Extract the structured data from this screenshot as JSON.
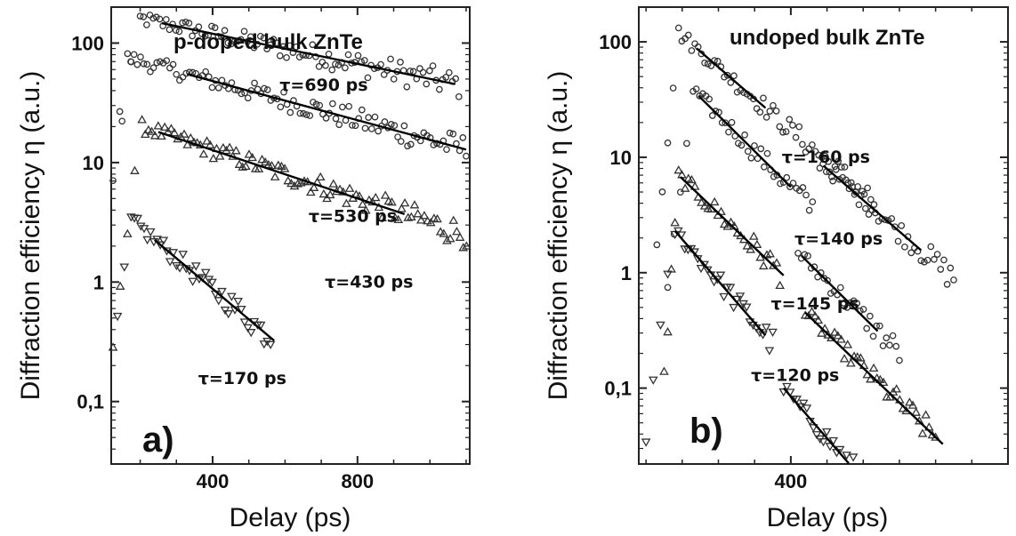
{
  "chart_data": [
    {
      "type": "scatter",
      "panel_label": "a)",
      "title": "p-doped bulk ZnTe",
      "xlabel": "Delay (ps)",
      "ylabel": "Diffraction efficiency η (a.u.)",
      "xlim": [
        120,
        1110
      ],
      "ylim": [
        0.03,
        200
      ],
      "yscale": "log",
      "x_ticks": [
        400,
        800
      ],
      "y_ticks": [
        {
          "value": 100,
          "label": "100"
        },
        {
          "value": 10,
          "label": "10"
        },
        {
          "value": 1,
          "label": "1"
        },
        {
          "value": 0.1,
          "label": "0,1"
        }
      ],
      "grid": false,
      "series": [
        {
          "marker": "open-circle",
          "amplitude": 160,
          "tau": 690,
          "t0": 200,
          "rise_start": 100,
          "end": 1080,
          "fit": {
            "x": [
              260,
              1070
            ],
            "label": "τ=690 ps",
            "label_x": 585,
            "label_y": 40
          }
        },
        {
          "marker": "open-circle",
          "amplitude": 75,
          "tau": 530,
          "t0": 165,
          "rise_start": 80,
          "end": 1100,
          "fit": {
            "x": [
              330,
              1100
            ],
            "label": "τ=530 ps",
            "label_x": 665,
            "label_y": 3.2
          }
        },
        {
          "marker": "open-triangle-up",
          "amplitude": 20,
          "tau": 430,
          "t0": 205,
          "rise_start": 125,
          "end": 1110,
          "fit": {
            "x": [
              250,
              930
            ],
            "label": "τ=430 ps",
            "label_x": 710,
            "label_y": 0.9
          }
        },
        {
          "marker": "open-triangle-down",
          "amplitude": 3.3,
          "tau": 170,
          "t0": 175,
          "rise_start": 100,
          "end": 560,
          "fit": {
            "x": [
              240,
              570
            ],
            "label": "τ=170 ps",
            "label_x": 360,
            "label_y": 0.14
          }
        }
      ]
    },
    {
      "type": "scatter",
      "panel_label": "b)",
      "title": "undoped bulk ZnTe",
      "xlabel": "Delay (ps)",
      "ylabel": "Diffraction efficiency η (a.u.)",
      "xlim": [
        -20,
        1000
      ],
      "ylim": [
        0.022,
        200
      ],
      "yscale": "log",
      "x_ticks": [
        400
      ],
      "y_ticks": [
        {
          "value": 100,
          "label": "100"
        },
        {
          "value": 10,
          "label": "10"
        },
        {
          "value": 1,
          "label": "1"
        },
        {
          "value": 0.1,
          "label": "0,1"
        }
      ],
      "grid": false,
      "series": [
        {
          "marker": "open-circle",
          "amplitude": 120,
          "tau": 160,
          "t0": 90,
          "rise_start": 30,
          "end": 630,
          "fit": {
            "x": [
              140,
              330
            ],
            "label": "τ=160 ps",
            "label_x": 375,
            "label_y": 9
          }
        },
        {
          "marker": "open-circle",
          "amplitude": 38,
          "tau": 140,
          "t0": 130,
          "rise_start": 60,
          "end": 460,
          "fit": {
            "x": [
              145,
              400
            ],
            "label": "τ=140 ps",
            "label_x": 410,
            "label_y": 1.75
          }
        },
        {
          "marker": "open-circle",
          "amplitude": 9,
          "tau": 160,
          "t0": 480,
          "rise_start": 490,
          "end": 850,
          "fit": {
            "x": [
              490,
              760
            ],
            "label": "",
            "label_x": 0,
            "label_y": 0
          }
        },
        {
          "marker": "open-circle",
          "amplitude": 1.5,
          "tau": 140,
          "t0": 420,
          "rise_start": 430,
          "end": 700,
          "fit": {
            "x": [
              430,
              640
            ],
            "label": "",
            "label_x": 0,
            "label_y": 0
          }
        },
        {
          "marker": "open-triangle-up",
          "amplitude": 7,
          "tau": 145,
          "t0": 90,
          "rise_start": 50,
          "end": 370,
          "fit": {
            "x": [
              95,
              380
            ],
            "label": "τ=145 ps",
            "label_x": 345,
            "label_y": 0.48
          }
        },
        {
          "marker": "open-triangle-up",
          "amplitude": 0.45,
          "tau": 145,
          "t0": 440,
          "rise_start": 460,
          "end": 800,
          "fit": {
            "x": [
              440,
              820
            ],
            "label": "",
            "label_x": 0,
            "label_y": 0
          }
        },
        {
          "marker": "open-triangle-down",
          "amplitude": 2.3,
          "tau": 120,
          "t0": 80,
          "rise_start": 0,
          "end": 350,
          "fit": {
            "x": [
              80,
              330
            ],
            "label": "τ=120 ps",
            "label_x": 290,
            "label_y": 0.115
          }
        },
        {
          "marker": "open-triangle-down",
          "amplitude": 0.1,
          "tau": 120,
          "t0": 380,
          "rise_start": 390,
          "end": 600,
          "fit": {
            "x": [
              380,
              560
            ],
            "label": "",
            "label_x": 0,
            "label_y": 0
          }
        }
      ]
    }
  ]
}
